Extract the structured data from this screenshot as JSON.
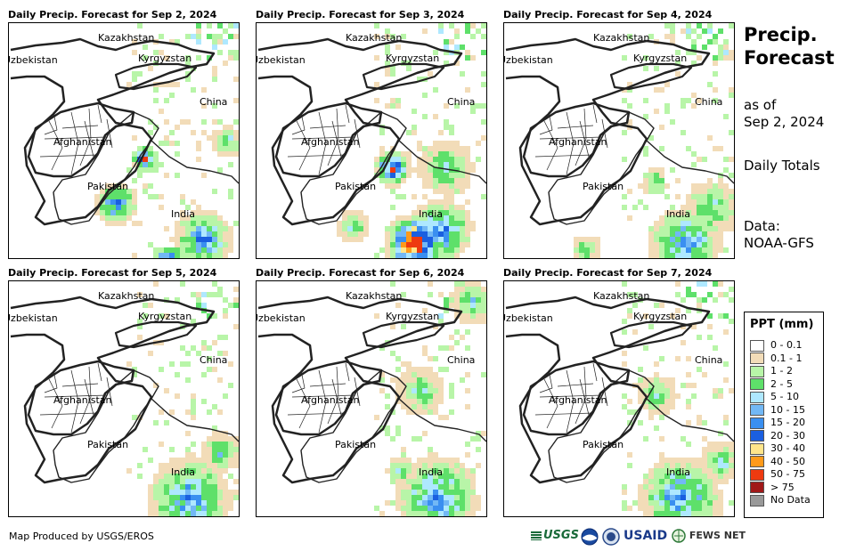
{
  "panels": [
    {
      "title": "Daily Precip. Forecast for Sep 2, 2024",
      "rain": [
        [
          150,
          150,
          18,
          4
        ],
        [
          178,
          270,
          26,
          5
        ],
        [
          215,
          240,
          40,
          3
        ],
        [
          118,
          200,
          28,
          3
        ],
        [
          243,
          130,
          22,
          2
        ]
      ]
    },
    {
      "title": "Daily Precip. Forecast for Sep 3, 2024",
      "rain": [
        [
          150,
          160,
          24,
          4
        ],
        [
          175,
          245,
          38,
          5
        ],
        [
          205,
          230,
          42,
          3
        ],
        [
          210,
          160,
          40,
          2
        ],
        [
          105,
          225,
          22,
          2
        ]
      ]
    },
    {
      "title": "Daily Precip. Forecast for Sep 4, 2024",
      "rain": [
        [
          200,
          245,
          48,
          3
        ],
        [
          230,
          205,
          40,
          2
        ],
        [
          165,
          175,
          20,
          2
        ],
        [
          90,
          250,
          20,
          2
        ]
      ]
    },
    {
      "title": "Daily Precip. Forecast for Sep 5, 2024",
      "rain": [
        [
          200,
          240,
          55,
          3
        ],
        [
          235,
          190,
          30,
          2
        ],
        [
          140,
          150,
          10,
          1
        ]
      ]
    },
    {
      "title": "Daily Precip. Forecast for Sep 6, 2024",
      "rain": [
        [
          200,
          240,
          55,
          3
        ],
        [
          160,
          210,
          20,
          2
        ],
        [
          180,
          120,
          35,
          2
        ],
        [
          240,
          20,
          30,
          2
        ]
      ]
    },
    {
      "title": "Daily Precip. Forecast for Sep 7, 2024",
      "rain": [
        [
          195,
          240,
          55,
          3
        ],
        [
          170,
          125,
          30,
          2
        ],
        [
          240,
          200,
          30,
          2
        ]
      ]
    }
  ],
  "country_labels": [
    "Kazakhstan",
    "Uzbekistan",
    "Kyrgyzstan",
    "China",
    "Afghanistan",
    "Pakistan",
    "India"
  ],
  "side": {
    "title_line1": "Precip.",
    "title_line2": "Forecast",
    "as_of_label": "as of",
    "as_of_date": "Sep 2, 2024",
    "period": "Daily Totals",
    "data_label": "Data:",
    "data_source": "NOAA-GFS"
  },
  "legend": {
    "title": "PPT (mm)",
    "items": [
      {
        "label": "0 - 0.1",
        "color": "#ffffff"
      },
      {
        "label": "0.1 - 1",
        "color": "#f2dcb8"
      },
      {
        "label": "1 - 2",
        "color": "#b8f5a8"
      },
      {
        "label": "2 - 5",
        "color": "#5ee06a"
      },
      {
        "label": "5 - 10",
        "color": "#aee8ff"
      },
      {
        "label": "10 - 15",
        "color": "#72b8f5"
      },
      {
        "label": "15 - 20",
        "color": "#3a8ff0"
      },
      {
        "label": "20 - 30",
        "color": "#1a5fe0"
      },
      {
        "label": "30 - 40",
        "color": "#ffe58a"
      },
      {
        "label": "40 - 50",
        "color": "#ff9a1a"
      },
      {
        "label": "50 - 75",
        "color": "#ee3a10"
      },
      {
        "label": "> 75",
        "color": "#a01818"
      },
      {
        "label": "No Data",
        "color": "#999999"
      }
    ]
  },
  "credit": "Map Produced by USGS/EROS",
  "logos": {
    "usgs": "USGS",
    "usaid": "USAID",
    "fewsnet": "FEWS NET"
  }
}
